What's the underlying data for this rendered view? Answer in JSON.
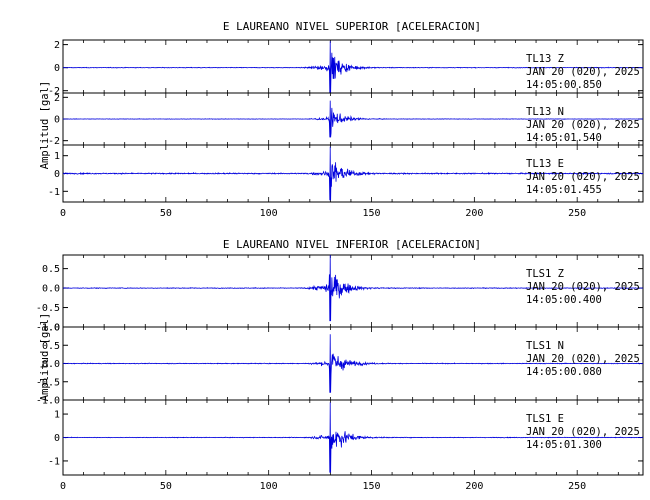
{
  "chart_data": [
    {
      "type": "line",
      "title": "E LAUREANO NIVEL SUPERIOR [ACELERACION]",
      "ylabel": "Amplitud [gal]",
      "xlabel": "",
      "xlim": [
        0,
        282
      ],
      "xticks": [
        0,
        50,
        100,
        150,
        200,
        250
      ],
      "grid": false,
      "line_color": "#0000dd",
      "event_onset_s": 117,
      "peak_time_s": 130,
      "traces": [
        {
          "station": "TL13",
          "component": "Z",
          "date": "JAN 20 (020), 2025",
          "time": "14:05:00.850",
          "ylim": [
            -2.2,
            2.4
          ],
          "yticks": [
            -2,
            0,
            2
          ],
          "yticklabels": [
            "-2",
            "0",
            "2"
          ],
          "peak_amplitude": 2.3,
          "noise_level": 0.04
        },
        {
          "station": "TL13",
          "component": "N",
          "date": "JAN 20 (020), 2025",
          "time": "14:05:01.540",
          "ylim": [
            -2.4,
            2.4
          ],
          "yticks": [
            -2,
            0,
            2
          ],
          "yticklabels": [
            "-2",
            "0",
            "2"
          ],
          "peak_amplitude": 1.7,
          "noise_level": 0.03
        },
        {
          "station": "TL13",
          "component": "E",
          "date": "JAN 20 (020), 2025",
          "time": "14:05:01.455",
          "ylim": [
            -1.6,
            1.6
          ],
          "yticks": [
            -1,
            0,
            1
          ],
          "yticklabels": [
            "-1",
            "0",
            "1"
          ],
          "peak_amplitude": 1.5,
          "noise_level": 0.05
        }
      ]
    },
    {
      "type": "line",
      "title": "E LAUREANO NIVEL INFERIOR [ACELERACION]",
      "ylabel": "Amplitud [gal]",
      "xlabel": "",
      "xlim": [
        0,
        282
      ],
      "xticks": [
        0,
        50,
        100,
        150,
        200,
        250
      ],
      "grid": false,
      "line_color": "#0000dd",
      "event_onset_s": 117,
      "peak_time_s": 130,
      "traces": [
        {
          "station": "TLS1",
          "component": "Z",
          "date": "JAN 20 (020), 2025",
          "time": "14:05:00.400",
          "ylim": [
            -1.0,
            0.85
          ],
          "yticks": [
            -1.0,
            -0.5,
            0.0,
            0.5
          ],
          "yticklabels": [
            "-1.0",
            "-0.5",
            "0.0",
            "0.5"
          ],
          "peak_amplitude": 0.85,
          "noise_level": 0.015
        },
        {
          "station": "TLS1",
          "component": "N",
          "date": "JAN 20 (020), 2025",
          "time": "14:05:00.080",
          "ylim": [
            -1.0,
            1.0
          ],
          "yticks": [
            -1.0,
            -0.5,
            0.0,
            0.5,
            1.0
          ],
          "yticklabels": [
            "-1.0",
            "-0.5",
            "0.0",
            "0.5",
            "1.0"
          ],
          "peak_amplitude": 0.8,
          "noise_level": 0.015
        },
        {
          "station": "TLS1",
          "component": "E",
          "date": "JAN 20 (020), 2025",
          "time": "14:05:01.300",
          "ylim": [
            -1.6,
            1.6
          ],
          "yticks": [
            -1,
            0,
            1
          ],
          "yticklabels": [
            "-1",
            "0",
            "1"
          ],
          "peak_amplitude": 1.5,
          "noise_level": 0.02
        }
      ]
    }
  ]
}
